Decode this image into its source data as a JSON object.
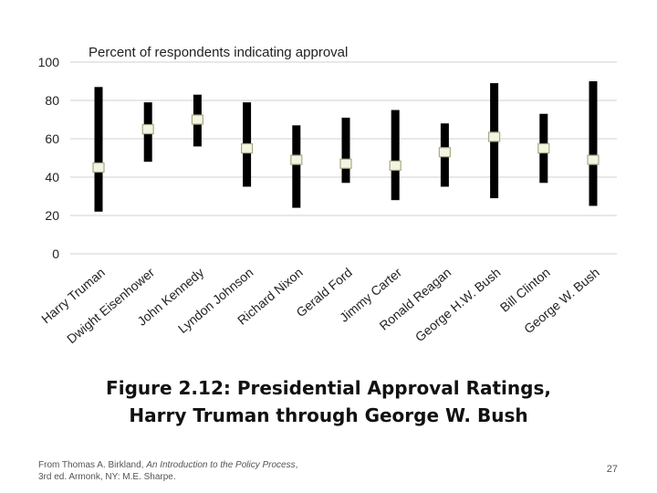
{
  "chart_data": {
    "type": "range",
    "title": "Percent of respondents indicating approval",
    "ylim": [
      0,
      100
    ],
    "yticks": [
      0,
      20,
      40,
      60,
      80,
      100
    ],
    "grid": true,
    "categories": [
      "Harry Truman",
      "Dwight Eisenhower",
      "John Kennedy",
      "Lyndon Johnson",
      "Richard Nixon",
      "Gerald Ford",
      "Jimmy Carter",
      "Ronald Reagan",
      "George H.W. Bush",
      "Bill Clinton",
      "George W. Bush"
    ],
    "low": [
      22,
      48,
      56,
      35,
      24,
      37,
      28,
      35,
      29,
      37,
      25
    ],
    "high": [
      87,
      79,
      83,
      79,
      67,
      71,
      75,
      68,
      89,
      73,
      90
    ],
    "average": [
      45,
      65,
      70,
      55,
      49,
      47,
      46,
      53,
      61,
      55,
      49
    ],
    "colors": {
      "range_bar": "#000000",
      "average_marker_fill": "#f4f4e2",
      "average_marker_stroke": "#a8aa86",
      "grid": "#d0d0d0"
    }
  },
  "caption": {
    "line1": "Figure 2.12: Presidential Approval Ratings,",
    "line2": "Harry Truman through George W. Bush"
  },
  "source": {
    "prefix": "From Thomas A. Birkland, ",
    "book_title": "An Introduction to the Policy Process",
    "suffix": ", 3rd ed. Armonk, NY: M.E. Sharpe."
  },
  "page_number": "27"
}
